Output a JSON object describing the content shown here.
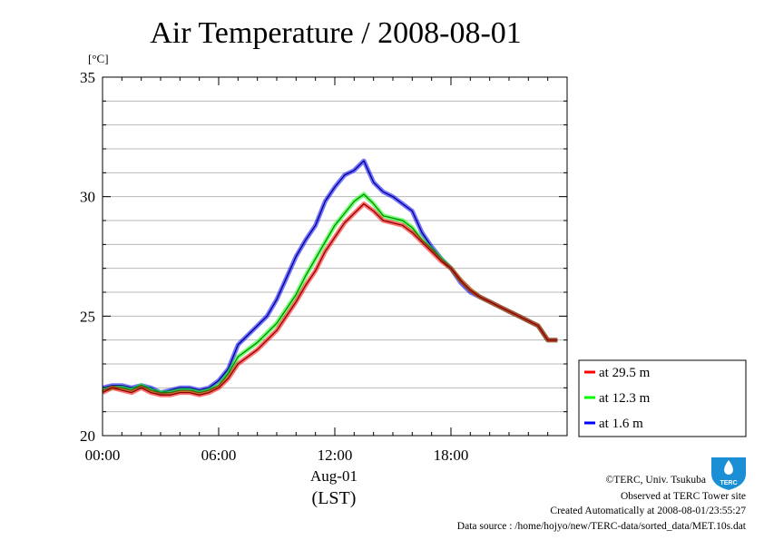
{
  "chart_data": {
    "type": "line",
    "title": "Air Temperature / 2008-08-01",
    "ylabel": "[°C]",
    "xlabel": "Aug-01",
    "xlabel2": "(LST)",
    "ylim": [
      20,
      35
    ],
    "xlim_hours": [
      0,
      24
    ],
    "y_ticks": [
      "20",
      "25",
      "30",
      "35"
    ],
    "y_tick_values": [
      20,
      25,
      30,
      35
    ],
    "x_ticks": [
      "00:00",
      "06:00",
      "12:00",
      "18:00"
    ],
    "x_tick_values": [
      0,
      6,
      12,
      18
    ],
    "grid": {
      "horizontal_step": 1,
      "vertical": false
    },
    "legend_position": "bottom-right outside",
    "series": [
      {
        "name": "at 29.5 m",
        "color": "#ff0000",
        "x": [
          0,
          0.5,
          1,
          1.5,
          2,
          2.5,
          3,
          3.5,
          4,
          4.5,
          5,
          5.5,
          6,
          6.5,
          7,
          7.5,
          8,
          8.5,
          9,
          9.5,
          10,
          10.5,
          11,
          11.5,
          12,
          12.5,
          13,
          13.5,
          14,
          14.5,
          15,
          15.5,
          16,
          16.5,
          17,
          17.5,
          18,
          18.5,
          19,
          19.5,
          20,
          20.5,
          21,
          21.5,
          22,
          22.5,
          23,
          23.5
        ],
        "y": [
          21.8,
          22.0,
          21.9,
          21.8,
          22.0,
          21.8,
          21.7,
          21.7,
          21.8,
          21.8,
          21.7,
          21.8,
          22.0,
          22.4,
          23.0,
          23.3,
          23.6,
          24.0,
          24.4,
          25.0,
          25.6,
          26.3,
          26.9,
          27.7,
          28.3,
          28.9,
          29.3,
          29.7,
          29.4,
          29.0,
          28.9,
          28.8,
          28.5,
          28.1,
          27.7,
          27.3,
          27.0,
          26.5,
          26.1,
          25.8,
          25.6,
          25.4,
          25.2,
          25.0,
          24.8,
          24.6,
          24.0,
          24.0
        ]
      },
      {
        "name": "at 12.3 m",
        "color": "#00ff00",
        "x": [
          0,
          0.5,
          1,
          1.5,
          2,
          2.5,
          3,
          3.5,
          4,
          4.5,
          5,
          5.5,
          6,
          6.5,
          7,
          7.5,
          8,
          8.5,
          9,
          9.5,
          10,
          10.5,
          11,
          11.5,
          12,
          12.5,
          13,
          13.5,
          14,
          14.5,
          15,
          15.5,
          16,
          16.5,
          17,
          17.5,
          18,
          18.5,
          19,
          19.5,
          20,
          20.5,
          21,
          21.5,
          22,
          22.5,
          23,
          23.5
        ],
        "y": [
          21.9,
          22.0,
          22.0,
          21.9,
          22.1,
          21.9,
          21.8,
          21.8,
          21.9,
          21.9,
          21.8,
          21.9,
          22.1,
          22.6,
          23.3,
          23.6,
          23.9,
          24.3,
          24.7,
          25.3,
          25.9,
          26.7,
          27.4,
          28.1,
          28.8,
          29.3,
          29.8,
          30.1,
          29.7,
          29.2,
          29.1,
          29.0,
          28.7,
          28.2,
          27.8,
          27.4,
          27.0,
          26.5,
          26.1,
          25.8,
          25.6,
          25.4,
          25.2,
          25.0,
          24.8,
          24.6,
          24.0,
          24.0
        ]
      },
      {
        "name": "at 1.6 m",
        "color": "#0000ff",
        "x": [
          0,
          0.5,
          1,
          1.5,
          2,
          2.5,
          3,
          3.5,
          4,
          4.5,
          5,
          5.5,
          6,
          6.5,
          7,
          7.5,
          8,
          8.5,
          9,
          9.5,
          10,
          10.5,
          11,
          11.5,
          12,
          12.5,
          13,
          13.5,
          14,
          14.5,
          15,
          15.5,
          16,
          16.5,
          17,
          17.5,
          18,
          18.5,
          19,
          19.5,
          20,
          20.5,
          21,
          21.5,
          22,
          22.5,
          23,
          23.5
        ],
        "y": [
          22.0,
          22.1,
          22.1,
          22.0,
          22.1,
          22.0,
          21.8,
          21.9,
          22.0,
          22.0,
          21.9,
          22.0,
          22.3,
          22.8,
          23.8,
          24.2,
          24.6,
          25.0,
          25.7,
          26.6,
          27.5,
          28.2,
          28.8,
          29.8,
          30.4,
          30.9,
          31.1,
          31.5,
          30.6,
          30.2,
          30.0,
          29.7,
          29.4,
          28.5,
          27.9,
          27.4,
          27.0,
          26.4,
          26.0,
          25.8,
          25.6,
          25.4,
          25.2,
          25.0,
          24.8,
          24.6,
          24.0,
          24.0
        ]
      }
    ]
  },
  "footer": {
    "copyright": "©TERC, Univ. Tsukuba",
    "observed": "Observed at TERC Tower site",
    "created": "Created Automatically at 2008-08-01/23:55:27",
    "source": "Data source : /home/hojyo/new/TERC-data/sorted_data/MET.10s.dat"
  },
  "logo": {
    "text": "TERC",
    "color": "#1a8fd6"
  }
}
